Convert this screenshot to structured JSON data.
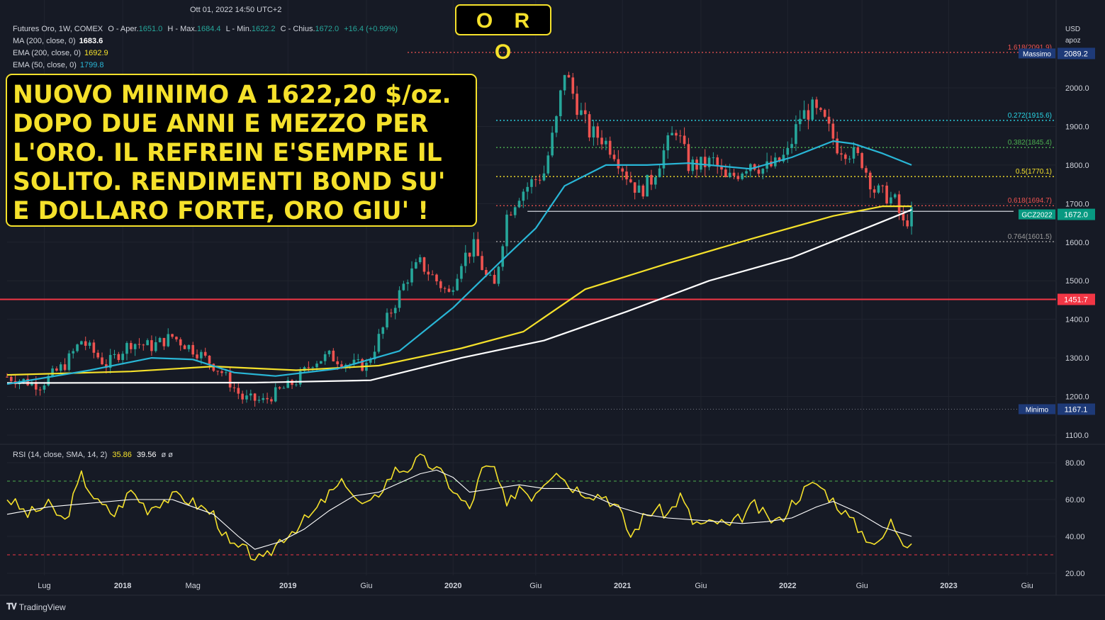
{
  "timestamp": "Ott 01, 2022 14:50 UTC+2",
  "title": "O R O",
  "annotation_lines": [
    "NUOVO MINIMO A 1622,20 $/oz.",
    "DOPO DUE ANNI E MEZZO PER",
    "L'ORO. IL REFREIN E'SEMPRE IL",
    "SOLITO. RENDIMENTI BOND SU'",
    "E DOLLARO FORTE, ORO GIU' !"
  ],
  "legend": {
    "symbol": "Futures Oro, 1W, COMEX",
    "ohlc_prefix": "O - Aper.",
    "open": "1651.0",
    "h_prefix": "H - Max.",
    "high": "1684.4",
    "l_prefix": "L - Min.",
    "low": "1622.2",
    "c_prefix": "C - Chius.",
    "close": "1672.0",
    "change": "+16.4 (+0.99%)",
    "ma200_label": "MA (200, close, 0)",
    "ma200_value": "1683.6",
    "ema200_label": "EMA (200, close, 0)",
    "ema200_value": "1692.9",
    "ema50_label": "EMA (50, close, 0)",
    "ema50_value": "1799.8"
  },
  "axis": {
    "currency": "USD",
    "unit": "apoz"
  },
  "colors": {
    "background": "#161a25",
    "up_candle": "#26a69a",
    "down_candle": "#ef5350",
    "ma200": "#ffffff",
    "ema200": "#f5e12b",
    "ema50": "#29b6d6",
    "rsi": "#f5e12b",
    "rsi_sma": "#ffffff",
    "support_line": "#f23645",
    "annotation": "#f5e12b"
  },
  "rsi_legend": {
    "label": "RSI (14, close, SMA, 14, 2)",
    "rsi": "35.86",
    "sma": "39.56",
    "extra": "ø ø"
  },
  "footer": {
    "brand": "TradingView"
  },
  "chart_data": [
    {
      "type": "candlestick",
      "title": "Futures Oro, 1W, COMEX",
      "price_range": [
        1100,
        2100
      ],
      "y_ticks": [
        "2000.0",
        "1900.0",
        "1800.0",
        "1700.0",
        "1600.0",
        "1500.0",
        "1400.0",
        "1300.0",
        "1200.0",
        "1100.0"
      ],
      "y_tick_values": [
        2000,
        1900,
        1800,
        1700,
        1600,
        1500,
        1400,
        1300,
        1200,
        1100
      ],
      "x_labels": [
        "Lug",
        "2018",
        "Mag",
        "2019",
        "Giu",
        "2020",
        "Giu",
        "2021",
        "Giu",
        "2022",
        "Giu",
        "2023",
        "Giu"
      ],
      "x_label_weeks": [
        9,
        28,
        45,
        68,
        87,
        108,
        128,
        149,
        168,
        189,
        207,
        228,
        247
      ],
      "total_weeks": 254,
      "last_week": 219,
      "series": [
        {
          "name": "Futures Oro (approx. weekly close)",
          "points": [
            [
              0,
              1251
            ],
            [
              8,
              1230
            ],
            [
              14,
              1283
            ],
            [
              18,
              1345
            ],
            [
              24,
              1282
            ],
            [
              30,
              1340
            ],
            [
              35,
              1330
            ],
            [
              40,
              1355
            ],
            [
              46,
              1316
            ],
            [
              52,
              1263
            ],
            [
              57,
              1195
            ],
            [
              62,
              1188
            ],
            [
              66,
              1215
            ],
            [
              70,
              1240
            ],
            [
              74,
              1290
            ],
            [
              78,
              1305
            ],
            [
              83,
              1283
            ],
            [
              87,
              1280
            ],
            [
              92,
              1400
            ],
            [
              97,
              1510
            ],
            [
              100,
              1545
            ],
            [
              104,
              1500
            ],
            [
              107,
              1465
            ],
            [
              110,
              1555
            ],
            [
              113,
              1587
            ],
            [
              116,
              1510
            ],
            [
              118,
              1485
            ],
            [
              121,
              1670
            ],
            [
              124,
              1725
            ],
            [
              127,
              1755
            ],
            [
              130,
              1780
            ],
            [
              133,
              1915
            ],
            [
              135,
              2045
            ],
            [
              138,
              1955
            ],
            [
              141,
              1885
            ],
            [
              144,
              1870
            ],
            [
              147,
              1835
            ],
            [
              150,
              1775
            ],
            [
              153,
              1730
            ],
            [
              156,
              1762
            ],
            [
              159,
              1835
            ],
            [
              162,
              1895
            ],
            [
              165,
              1800
            ],
            [
              168,
              1800
            ],
            [
              171,
              1810
            ],
            [
              174,
              1760
            ],
            [
              177,
              1780
            ],
            [
              180,
              1810
            ],
            [
              183,
              1790
            ],
            [
              186,
              1800
            ],
            [
              189,
              1830
            ],
            [
              192,
              1925
            ],
            [
              195,
              1945
            ],
            [
              198,
              1910
            ],
            [
              201,
              1850
            ],
            [
              204,
              1835
            ],
            [
              207,
              1810
            ],
            [
              210,
              1735
            ],
            [
              213,
              1720
            ],
            [
              215,
              1705
            ],
            [
              217,
              1645
            ],
            [
              219,
              1672
            ]
          ]
        },
        {
          "name": "MA (200, close, 0)",
          "value_label": "1683.6",
          "points": [
            [
              0,
              1235
            ],
            [
              60,
              1236
            ],
            [
              88,
              1242
            ],
            [
              110,
              1300
            ],
            [
              130,
              1345
            ],
            [
              150,
              1420
            ],
            [
              170,
              1500
            ],
            [
              190,
              1560
            ],
            [
              210,
              1645
            ],
            [
              219,
              1684
            ]
          ]
        },
        {
          "name": "EMA (200, close, 0)",
          "value_label": "1692.9",
          "points": [
            [
              0,
              1256
            ],
            [
              30,
              1265
            ],
            [
              50,
              1278
            ],
            [
              70,
              1268
            ],
            [
              90,
              1280
            ],
            [
              110,
              1325
            ],
            [
              125,
              1368
            ],
            [
              140,
              1478
            ],
            [
              160,
              1545
            ],
            [
              180,
              1608
            ],
            [
              200,
              1668
            ],
            [
              212,
              1693
            ],
            [
              219,
              1693
            ]
          ]
        },
        {
          "name": "EMA (50, close, 0)",
          "value_label": "1799.8",
          "points": [
            [
              0,
              1232
            ],
            [
              20,
              1268
            ],
            [
              35,
              1300
            ],
            [
              45,
              1296
            ],
            [
              55,
              1262
            ],
            [
              65,
              1253
            ],
            [
              80,
              1272
            ],
            [
              95,
              1318
            ],
            [
              108,
              1430
            ],
            [
              120,
              1555
            ],
            [
              128,
              1636
            ],
            [
              135,
              1746
            ],
            [
              145,
              1800
            ],
            [
              155,
              1800
            ],
            [
              165,
              1805
            ],
            [
              180,
              1790
            ],
            [
              190,
              1820
            ],
            [
              200,
              1862
            ],
            [
              205,
              1855
            ],
            [
              212,
              1830
            ],
            [
              219,
              1800
            ]
          ]
        }
      ],
      "levels": [
        {
          "label": "1.618(2091.9)",
          "value": 2091.9,
          "color": "#ef5350"
        },
        {
          "label": "0.272(1915.6)",
          "value": 1915.6,
          "color": "#29d6e6"
        },
        {
          "label": "0.382(1845.4)",
          "value": 1845.4,
          "color": "#4caf50"
        },
        {
          "label": "0.5(1770.1)",
          "value": 1770.1,
          "color": "#f5e12b"
        },
        {
          "label": "0.618(1694.7)",
          "value": 1694.7,
          "color": "#ef5350"
        },
        {
          "label": "0.764(1601.5)",
          "value": 1601.5,
          "color": "#9e9e9e"
        }
      ],
      "support": {
        "value": 1451.7,
        "label": "1451.7"
      },
      "neckline": {
        "value": 1680
      },
      "price_tags": [
        {
          "caption": "Massimo",
          "label": "2089.2",
          "value": 2089.2
        },
        {
          "caption": "GCZ2022",
          "label": "1672.0",
          "value": 1672.0
        },
        {
          "caption": "Minimo",
          "label": "1167.1",
          "value": 1167.1
        }
      ]
    },
    {
      "type": "line",
      "title": "RSI (14, close, SMA, 14, 2)",
      "ylim": [
        20,
        80
      ],
      "y_ticks": [
        "80.00",
        "60.00",
        "40.00",
        "20.00"
      ],
      "y_tick_values": [
        80,
        60,
        40,
        20
      ],
      "bands": [
        70,
        30
      ],
      "series": [
        {
          "name": "RSI",
          "points": [
            [
              0,
              61
            ],
            [
              5,
              52
            ],
            [
              10,
              57
            ],
            [
              14,
              48
            ],
            [
              18,
              73
            ],
            [
              22,
              58
            ],
            [
              26,
              52
            ],
            [
              30,
              65
            ],
            [
              34,
              55
            ],
            [
              38,
              60
            ],
            [
              42,
              62
            ],
            [
              46,
              57
            ],
            [
              50,
              52
            ],
            [
              54,
              35
            ],
            [
              58,
              32
            ],
            [
              62,
              26
            ],
            [
              66,
              38
            ],
            [
              70,
              45
            ],
            [
              74,
              52
            ],
            [
              78,
              63
            ],
            [
              82,
              70
            ],
            [
              85,
              58
            ],
            [
              88,
              57
            ],
            [
              91,
              67
            ],
            [
              94,
              76
            ],
            [
              97,
              77
            ],
            [
              100,
              82
            ],
            [
              103,
              78
            ],
            [
              106,
              72
            ],
            [
              109,
              62
            ],
            [
              112,
              55
            ],
            [
              115,
              76
            ],
            [
              118,
              77
            ],
            [
              121,
              55
            ],
            [
              124,
              68
            ],
            [
              127,
              62
            ],
            [
              130,
              70
            ],
            [
              133,
              77
            ],
            [
              136,
              68
            ],
            [
              139,
              65
            ],
            [
              142,
              63
            ],
            [
              145,
              62
            ],
            [
              148,
              55
            ],
            [
              151,
              40
            ],
            [
              154,
              50
            ],
            [
              157,
              55
            ],
            [
              160,
              52
            ],
            [
              163,
              62
            ],
            [
              166,
              48
            ],
            [
              169,
              46
            ],
            [
              172,
              48
            ],
            [
              175,
              45
            ],
            [
              178,
              51
            ],
            [
              181,
              57
            ],
            [
              184,
              50
            ],
            [
              187,
              48
            ],
            [
              190,
              58
            ],
            [
              193,
              65
            ],
            [
              196,
              69
            ],
            [
              199,
              62
            ],
            [
              202,
              55
            ],
            [
              205,
              47
            ],
            [
              208,
              40
            ],
            [
              211,
              35
            ],
            [
              214,
              48
            ],
            [
              217,
              38
            ],
            [
              219,
              36
            ]
          ]
        },
        {
          "name": "RSI SMA",
          "points": [
            [
              0,
              52
            ],
            [
              10,
              56
            ],
            [
              20,
              58
            ],
            [
              30,
              60
            ],
            [
              40,
              60
            ],
            [
              50,
              52
            ],
            [
              56,
              40
            ],
            [
              60,
              33
            ],
            [
              66,
              37
            ],
            [
              72,
              44
            ],
            [
              78,
              54
            ],
            [
              84,
              62
            ],
            [
              90,
              64
            ],
            [
              96,
              70
            ],
            [
              100,
              74
            ],
            [
              104,
              76
            ],
            [
              108,
              72
            ],
            [
              112,
              64
            ],
            [
              118,
              66
            ],
            [
              124,
              68
            ],
            [
              130,
              66
            ],
            [
              136,
              66
            ],
            [
              142,
              62
            ],
            [
              148,
              56
            ],
            [
              154,
              52
            ],
            [
              160,
              50
            ],
            [
              166,
              49
            ],
            [
              172,
              48
            ],
            [
              178,
              47
            ],
            [
              184,
              48
            ],
            [
              190,
              50
            ],
            [
              196,
              56
            ],
            [
              200,
              59
            ],
            [
              206,
              53
            ],
            [
              212,
              45
            ],
            [
              219,
              40
            ]
          ]
        }
      ]
    }
  ]
}
